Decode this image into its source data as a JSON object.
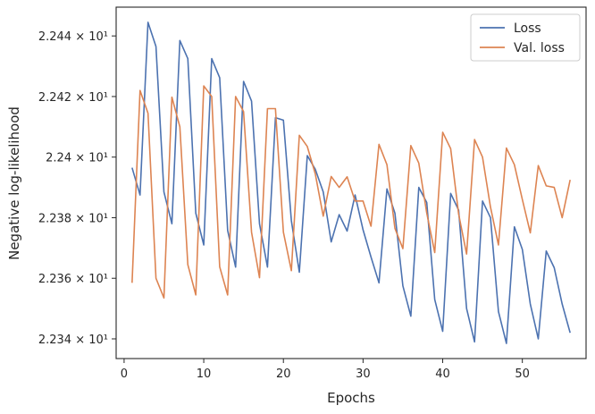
{
  "chart_data": {
    "type": "line",
    "xlabel": "Epochs",
    "ylabel": "Negative log-likelihood",
    "xlim": [
      -1,
      58
    ],
    "ylim": [
      22.3335,
      22.4495
    ],
    "xticks": [
      0,
      10,
      20,
      30,
      40,
      50
    ],
    "yticks": [
      {
        "value": 22.34,
        "label": "2.234 × 10¹"
      },
      {
        "value": 22.36,
        "label": "2.236 × 10¹"
      },
      {
        "value": 22.38,
        "label": "2.238 × 10¹"
      },
      {
        "value": 22.4,
        "label": "2.24 × 10¹"
      },
      {
        "value": 22.42,
        "label": "2.242 × 10¹"
      },
      {
        "value": 22.44,
        "label": "2.244 × 10¹"
      }
    ],
    "grid": false,
    "legend_position": "top-right",
    "x": [
      1,
      2,
      3,
      4,
      5,
      6,
      7,
      8,
      9,
      10,
      11,
      12,
      13,
      14,
      15,
      16,
      17,
      18,
      19,
      20,
      21,
      22,
      23,
      24,
      25,
      26,
      27,
      28,
      29,
      30,
      31,
      32,
      33,
      34,
      35,
      36,
      37,
      38,
      39,
      40,
      41,
      42,
      43,
      44,
      45,
      46,
      47,
      48,
      49,
      50,
      51,
      52,
      53,
      54,
      55,
      56
    ],
    "series": [
      {
        "name": "Loss",
        "color": "#4c72b0",
        "values": [
          22.3965,
          22.3875,
          22.4445,
          22.4365,
          22.3885,
          22.378,
          22.4385,
          22.4325,
          22.3815,
          22.371,
          22.4325,
          22.4262,
          22.3758,
          22.3637,
          22.425,
          22.4185,
          22.378,
          22.3637,
          22.413,
          22.4122,
          22.379,
          22.362,
          22.4005,
          22.396,
          22.3885,
          22.372,
          22.381,
          22.3756,
          22.3875,
          22.376,
          22.367,
          22.3585,
          22.3895,
          22.3815,
          22.3575,
          22.3475,
          22.39,
          22.385,
          22.353,
          22.3425,
          22.388,
          22.3825,
          22.35,
          22.339,
          22.3855,
          22.38,
          22.349,
          22.3385,
          22.377,
          22.3695,
          22.3515,
          22.34,
          22.369,
          22.3635,
          22.3515,
          22.342
        ]
      },
      {
        "name": "Val. loss",
        "color": "#dd8452",
        "values": [
          22.3585,
          22.422,
          22.4145,
          22.36,
          22.3535,
          22.4198,
          22.41,
          22.3645,
          22.3545,
          22.4235,
          22.42,
          22.3638,
          22.3545,
          22.42,
          22.415,
          22.3752,
          22.3602,
          22.416,
          22.416,
          22.3752,
          22.3625,
          22.4072,
          22.4035,
          22.3945,
          22.3805,
          22.3936,
          22.39,
          22.3935,
          22.3855,
          22.3855,
          22.3772,
          22.4042,
          22.3975,
          22.3765,
          22.3698,
          22.4038,
          22.398,
          22.3815,
          22.3685,
          22.4082,
          22.4028,
          22.3812,
          22.368,
          22.4058,
          22.4,
          22.3835,
          22.371,
          22.403,
          22.3975,
          22.386,
          22.375,
          22.3972,
          22.3905,
          22.39,
          22.38,
          22.3925
        ]
      }
    ]
  }
}
